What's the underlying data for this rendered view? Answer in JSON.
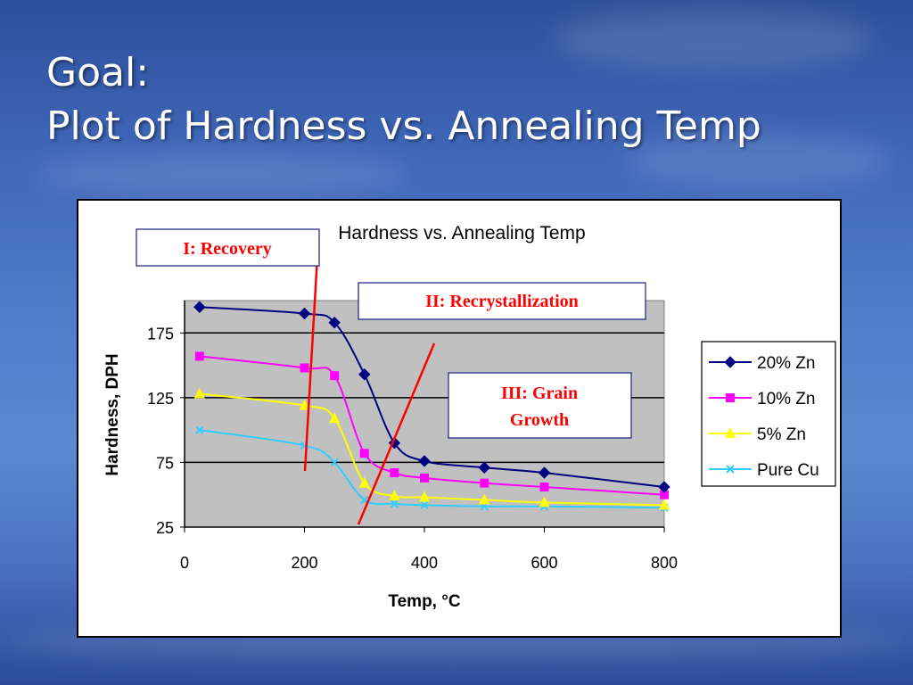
{
  "slide": {
    "title_line1": "Goal:",
    "title_line2": "Plot of Hardness vs. Annealing Temp"
  },
  "chart_data": {
    "type": "line",
    "title": "Hardness vs. Annealing Temp",
    "xlabel": "Temp, °C",
    "ylabel": "Hardness, DPH",
    "xlim": [
      0,
      800
    ],
    "ylim": [
      25,
      200
    ],
    "xticks": [
      0,
      200,
      400,
      600,
      800
    ],
    "yticks": [
      25,
      75,
      125,
      175
    ],
    "grid": "horizontal",
    "plot_background": "#c0c0c0",
    "legend_position": "right",
    "series": [
      {
        "name": "20% Zn",
        "color": "#000080",
        "marker": "diamond",
        "x": [
          25,
          200,
          250,
          300,
          350,
          400,
          500,
          600,
          800
        ],
        "y": [
          195,
          190,
          183,
          143,
          90,
          76,
          71,
          67,
          56
        ]
      },
      {
        "name": "10% Zn",
        "color": "#ff00ff",
        "marker": "square",
        "x": [
          25,
          200,
          250,
          300,
          350,
          400,
          500,
          600,
          800
        ],
        "y": [
          157,
          148,
          142,
          82,
          67,
          63,
          59,
          56,
          50
        ]
      },
      {
        "name": "5% Zn",
        "color": "#ffff00",
        "marker": "triangle",
        "x": [
          25,
          200,
          250,
          300,
          350,
          400,
          500,
          600,
          800
        ],
        "y": [
          128,
          119,
          109,
          59,
          49,
          48,
          46,
          44,
          42
        ]
      },
      {
        "name": "Pure Cu",
        "color": "#33ccff",
        "marker": "x",
        "x": [
          25,
          200,
          250,
          300,
          350,
          400,
          500,
          600,
          800
        ],
        "y": [
          100,
          88,
          75,
          46,
          43,
          42,
          41,
          41,
          40
        ]
      }
    ],
    "annotations": [
      {
        "text": "I: Recovery",
        "color": "#ff0000"
      },
      {
        "text": "II: Recrystallization",
        "color": "#ff0000"
      },
      {
        "text_lines": [
          "III: Grain",
          "Growth"
        ],
        "color": "#ff0000"
      }
    ],
    "divider_color": "#ff0000"
  }
}
